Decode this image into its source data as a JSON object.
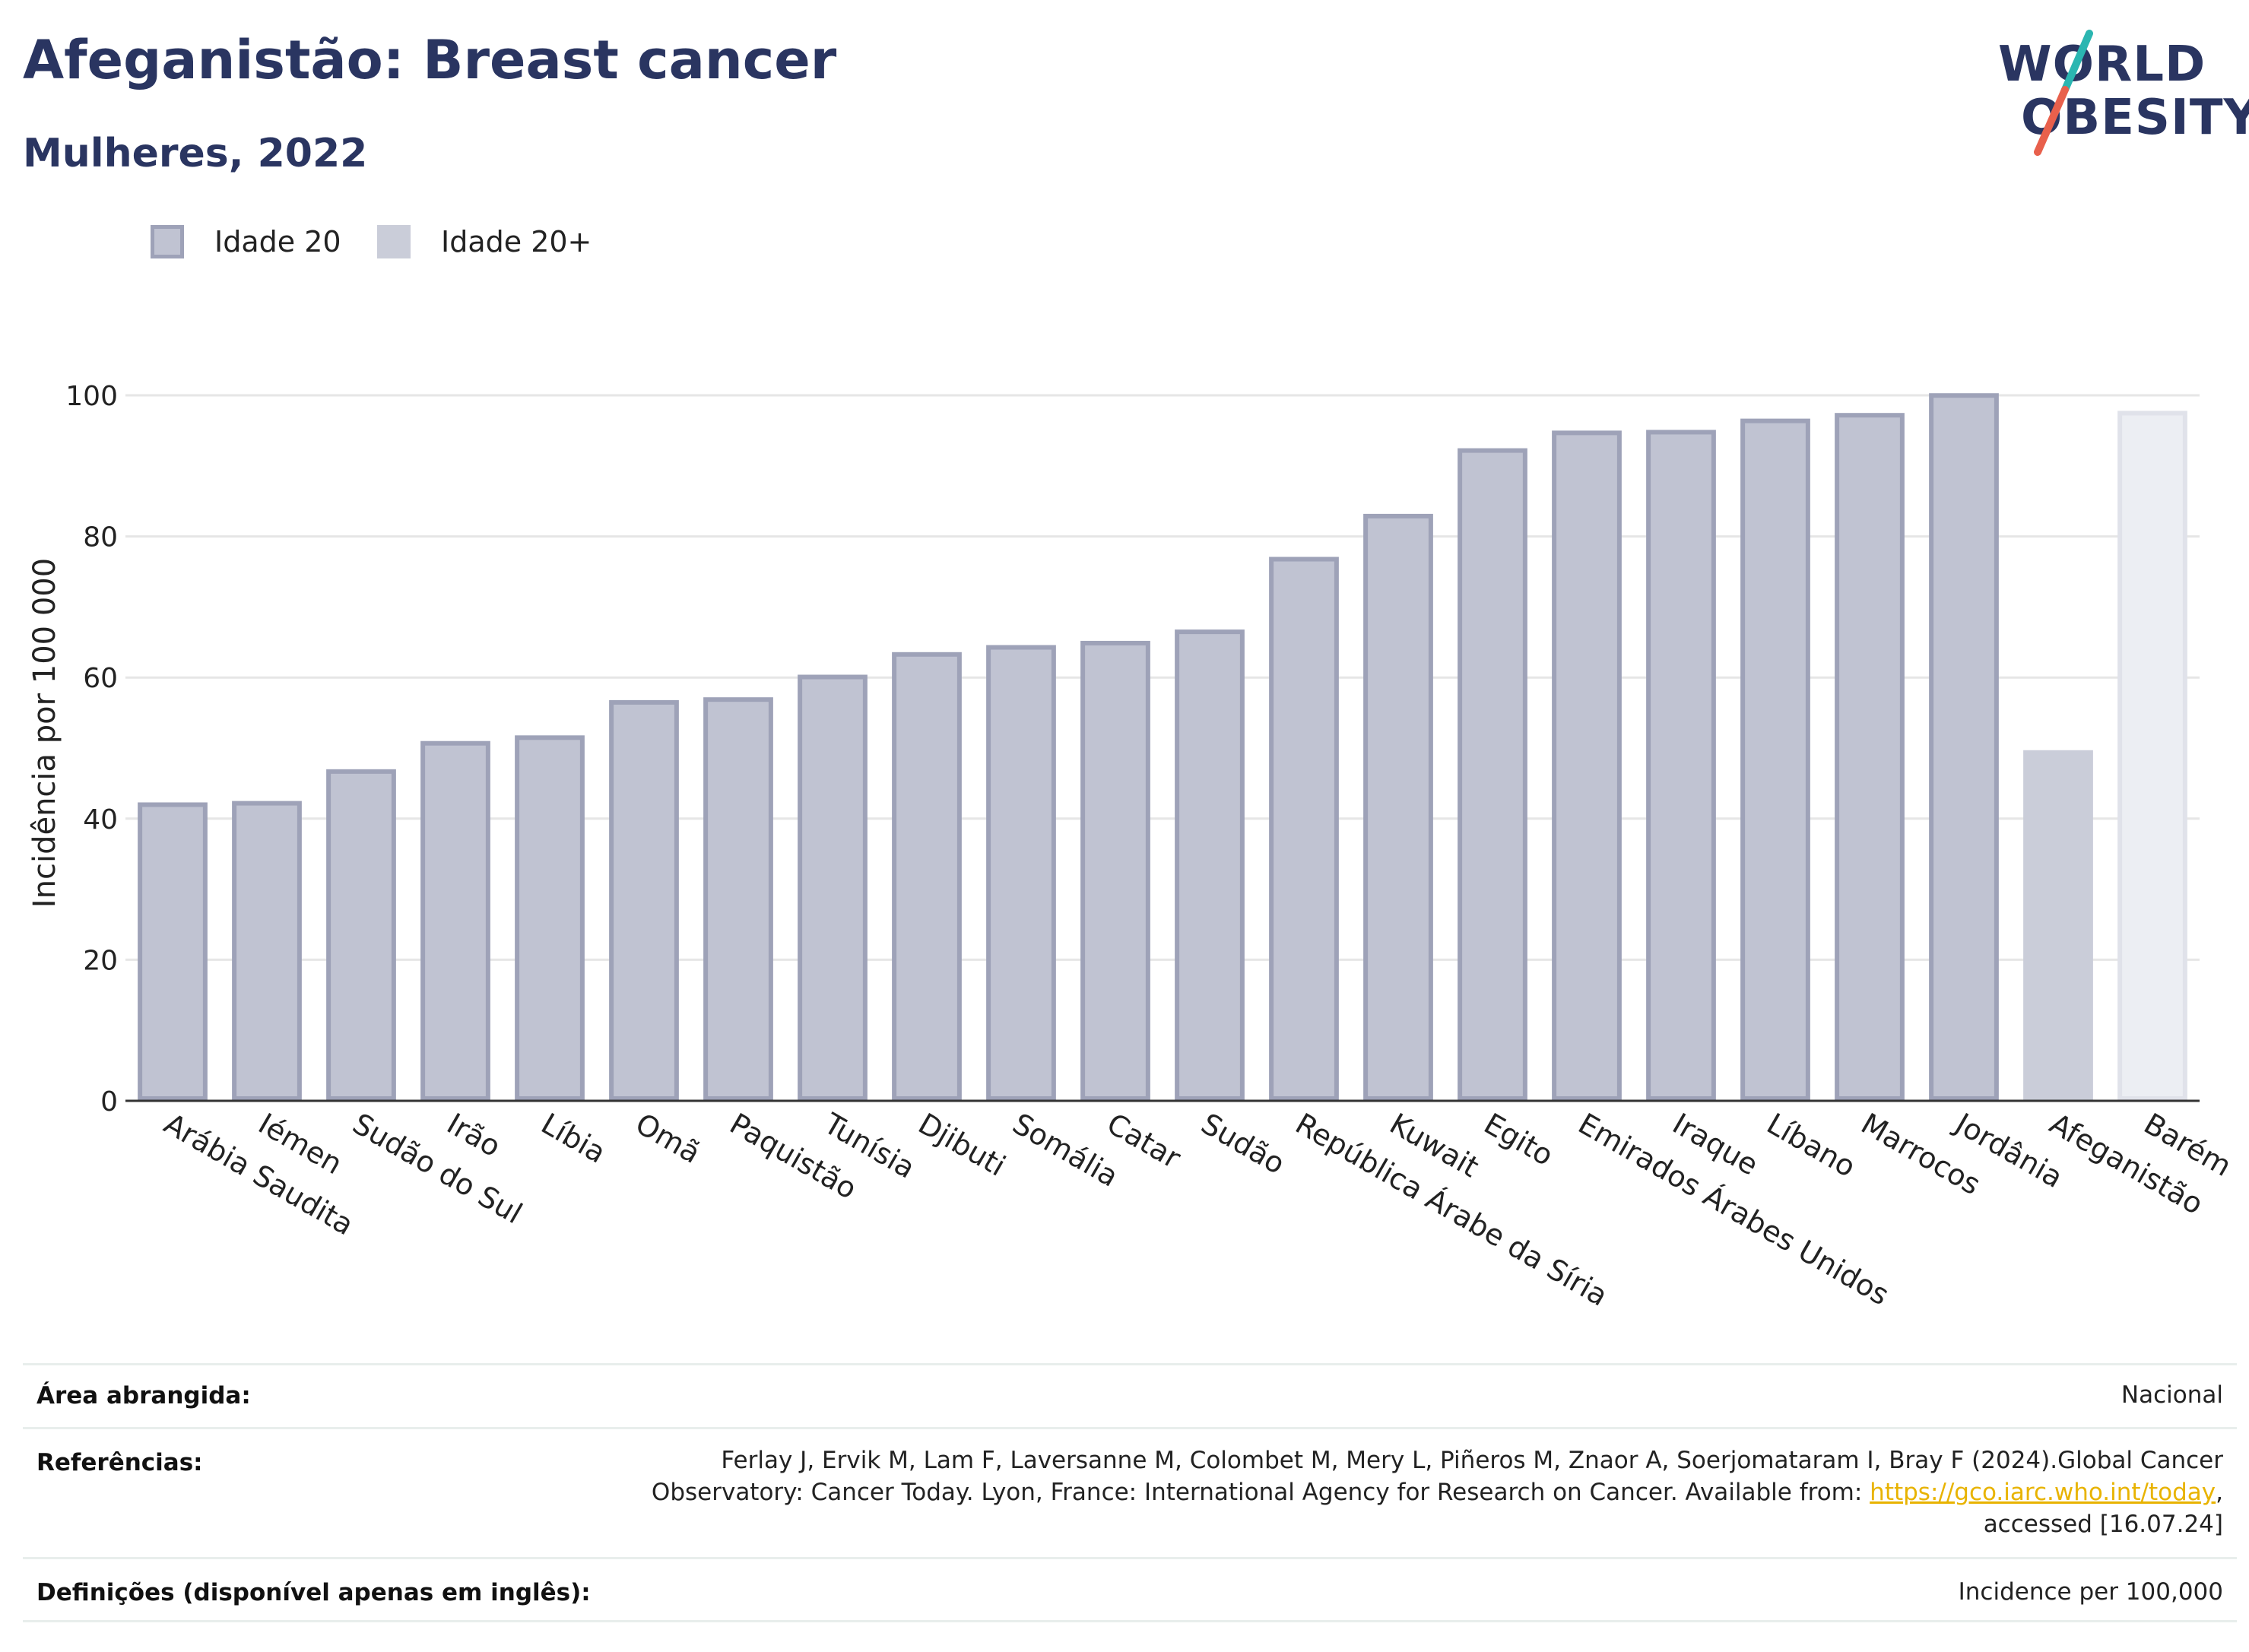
{
  "header": {
    "title": "Afeganistão: Breast cancer",
    "subtitle": "Mulheres, 2022"
  },
  "logo": {
    "line1": "WORLD",
    "line2": "OBESITY",
    "accent_colors": [
      "#2bb6b1",
      "#e8604c"
    ]
  },
  "legend": {
    "items": [
      {
        "label": "Idade 20",
        "color": "#c0c3d2",
        "border": "#9ea2b8"
      },
      {
        "label": "Idade 20+",
        "color": "#cacdd9"
      }
    ]
  },
  "chart_data": {
    "type": "bar",
    "ylabel": "Incidência por 100 000",
    "xlabel": "",
    "ylim": [
      0,
      100
    ],
    "yticks": [
      0,
      20,
      40,
      60,
      80,
      100
    ],
    "grid": true,
    "categories": [
      "Arábia Saudita",
      "Iémen",
      "Sudão do Sul",
      "Irão",
      "Líbia",
      "Omã",
      "Paquistão",
      "Tunísia",
      "Djibuti",
      "Somália",
      "Catar",
      "Sudão",
      "República Árabe da Síria",
      "Kuwait",
      "Egito",
      "Emirados Árabes Unidos",
      "Iraque",
      "Líbano",
      "Marrocos",
      "Jordânia",
      "Afeganistão",
      "Barém"
    ],
    "values": [
      42.3,
      42.5,
      47.0,
      51.0,
      51.8,
      56.8,
      57.2,
      60.4,
      63.6,
      64.6,
      65.2,
      66.8,
      77.1,
      83.2,
      92.5,
      95.0,
      95.1,
      96.7,
      97.5,
      100.3,
      49.7,
      97.8
    ],
    "colors": {
      "comparison_fill": "#c0c3d2",
      "comparison_border": "#9ea2b8",
      "highlight_fill": "#cacdd9",
      "highlight_alt_fill": "#eceef3",
      "highlight_alt_border": "#e0e2ea"
    }
  },
  "footer": {
    "rows": [
      {
        "label": "Área abrangida:",
        "value_lines": [
          "Nacional"
        ]
      },
      {
        "label": "Referências:",
        "value_lines": [
          "Ferlay J, Ervik M, Lam F, Laversanne M, Colombet M, Mery L, Piñeros M, Znaor A, Soerjomataram I, Bray F (2024).Global Cancer",
          "Observatory: Cancer Today. Lyon, France: International Agency for Research on Cancer. Available from: ",
          "accessed [16.07.24]"
        ],
        "link_text": "https://gco.iarc.who.int/today"
      },
      {
        "label": "Definições (disponível apenas em inglês):",
        "value_lines": [
          "Incidence per 100,000"
        ]
      }
    ]
  }
}
